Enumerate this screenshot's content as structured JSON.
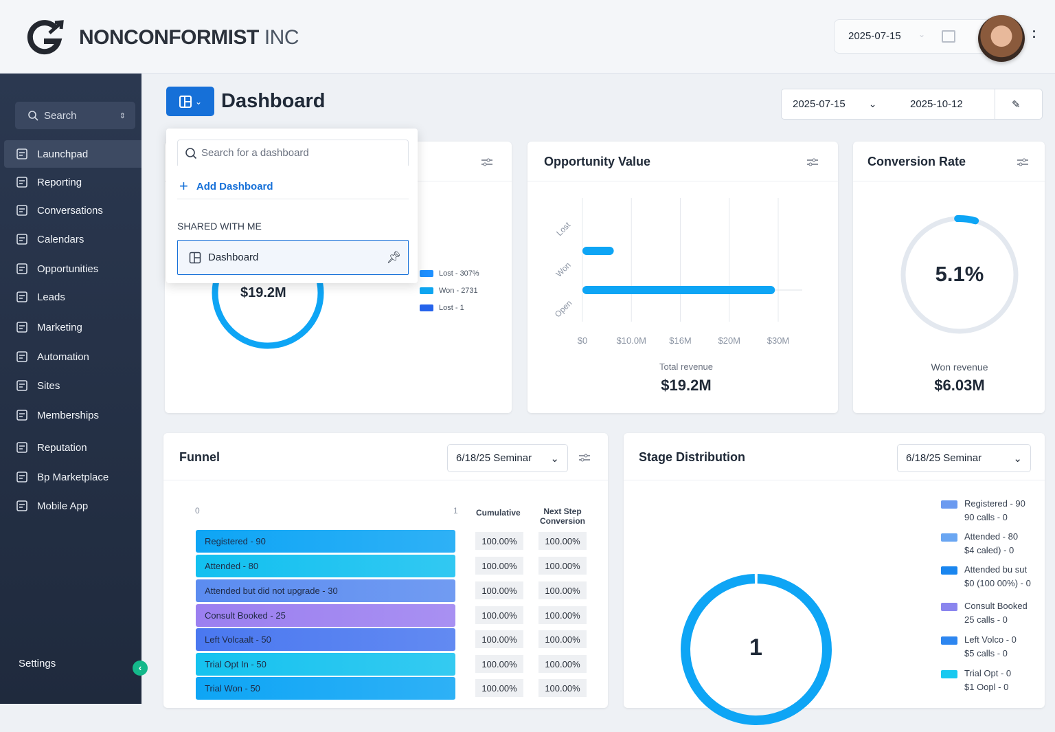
{
  "header": {
    "brand": "NONCONFORMIST",
    "brand_suffix": "INC",
    "date": "2025-07-15"
  },
  "sidebar": {
    "search": "Search",
    "items": [
      {
        "label": "Launchpad",
        "icon": "rocket-icon"
      },
      {
        "label": "Reporting",
        "icon": "report-icon"
      },
      {
        "label": "Conversations",
        "icon": "chat-icon"
      },
      {
        "label": "Calendars",
        "icon": "calendar-icon"
      },
      {
        "label": "Opportunities",
        "icon": "funnel-icon"
      },
      {
        "label": "Leads",
        "icon": "list-icon"
      },
      {
        "label": "Marketing",
        "icon": "megaphone-icon"
      },
      {
        "label": "Automation",
        "icon": "automation-icon"
      },
      {
        "label": "Sites",
        "icon": "globe-icon"
      },
      {
        "label": "Memberships",
        "icon": "membership-icon"
      },
      {
        "label": "Reputation",
        "icon": "star-icon"
      },
      {
        "label": "Bp Marketplace",
        "icon": "marketplace-icon"
      },
      {
        "label": "Mobile App",
        "icon": "mobile-icon"
      }
    ],
    "settings": "Settings"
  },
  "page": {
    "title": "Dashboard",
    "date_from": "2025-07-15",
    "date_to": "2025-10-12"
  },
  "popover": {
    "search_placeholder": "Search for a dashboard",
    "add_label": "Add Dashboard",
    "section": "SHARED WITH ME",
    "item": "Dashboard"
  },
  "card_value": {
    "total": "$19.2M",
    "legend": [
      "Lost - 307%",
      "Won - 2731",
      "Lost - 1"
    ],
    "legend_colors": [
      "#1e90ff",
      "#0ea5f0",
      "#2563eb"
    ]
  },
  "opportunity": {
    "title": "Opportunity Value",
    "total_label": "Total revenue",
    "total": "$19.2M"
  },
  "conversion": {
    "title": "Conversion Rate",
    "value": "5.1%",
    "percent": 5.1,
    "sub_label": "Won revenue",
    "sub_value": "$6.03M"
  },
  "chart_data": {
    "type": "bar",
    "orientation": "horizontal",
    "categories": [
      "Lost",
      "Won",
      "Open"
    ],
    "values": [
      0,
      4.8,
      29.5
    ],
    "xticks": [
      "$0",
      "$10.0M",
      "$16M",
      "$20M",
      "$30M"
    ],
    "xlim": [
      0,
      30
    ],
    "color": "#0ea5f5"
  },
  "funnel": {
    "title": "Funnel",
    "filter": "6/18/25 Seminar",
    "axis_min": "0",
    "axis_max": "1",
    "col_cumulative": "Cumulative",
    "col_next": "Next Step Conversion",
    "rows": [
      {
        "label": "Registered - 90",
        "color": "#0ea5f5",
        "cum": "100.00%",
        "next": "100.00%"
      },
      {
        "label": "Attended - 80",
        "color": "#12c0f0",
        "cum": "100.00%",
        "next": "100.00%"
      },
      {
        "label": "Attended but did not upgrade - 30",
        "color": "#5b8cf0",
        "cum": "100.00%",
        "next": "100.00%"
      },
      {
        "label": "Consult Booked - 25",
        "color": "#9b7ff0",
        "cum": "100.00%",
        "next": "100.00%"
      },
      {
        "label": "Left Volcaalt - 50",
        "color": "#4a78f0",
        "cum": "100.00%",
        "next": "100.00%"
      },
      {
        "label": "Trial Opt In - 50",
        "color": "#15c2ef",
        "cum": "100.00%",
        "next": "100.00%"
      },
      {
        "label": "Trial Won - 50",
        "color": "#0ea5f5",
        "cum": "100.00%",
        "next": "100.00%"
      }
    ]
  },
  "stage": {
    "title": "Stage Distribution",
    "filter": "6/18/25 Seminar",
    "center": "1",
    "legend": [
      {
        "l1": "Registered - 90",
        "l2": "90 calls - 0",
        "color": "#6b9af0"
      },
      {
        "l1": "Attended - 80",
        "l2": "$4 caled) - 0",
        "color": "#6aa6f2"
      },
      {
        "l1": "Attended bu sut",
        "l2": "$0 (100 00%) - 0",
        "color": "#1a86ef"
      },
      {
        "l1": "Consult Booked",
        "l2": "25 calls - 0",
        "color": "#8a85ee"
      },
      {
        "l1": "Left Volco - 0",
        "l2": "$5 calls - 0",
        "color": "#2d86f0"
      },
      {
        "l1": "Trial Opt - 0",
        "l2": "$1 Oopl - 0",
        "color": "#18c9f0"
      }
    ]
  }
}
